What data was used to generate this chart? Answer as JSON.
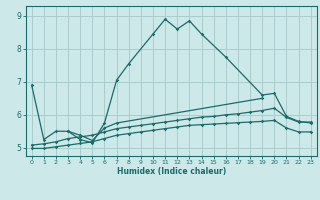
{
  "xlabel": "Humidex (Indice chaleur)",
  "bg_color": "#cce8e8",
  "grid_color": "#aacccc",
  "line_color": "#1a6b6b",
  "xlim": [
    -0.5,
    23.5
  ],
  "ylim": [
    4.75,
    9.3
  ],
  "yticks": [
    5,
    6,
    7,
    8,
    9
  ],
  "xticks": [
    0,
    1,
    2,
    3,
    4,
    5,
    6,
    7,
    8,
    9,
    10,
    11,
    12,
    13,
    14,
    15,
    16,
    17,
    18,
    19,
    20,
    21,
    22,
    23
  ],
  "lines": [
    {
      "x": [
        0,
        1,
        2,
        3,
        4,
        5,
        6,
        7,
        8,
        10,
        11,
        12,
        13,
        14,
        16,
        19,
        20,
        21,
        22,
        23
      ],
      "y": [
        6.9,
        5.25,
        5.5,
        5.5,
        5.25,
        5.15,
        5.75,
        7.05,
        7.55,
        8.45,
        8.9,
        8.6,
        8.85,
        8.45,
        7.75,
        6.6,
        6.65,
        5.95,
        5.8,
        5.75
      ]
    },
    {
      "x": [
        3,
        4,
        5,
        6,
        7,
        19
      ],
      "y": [
        5.5,
        5.38,
        5.22,
        5.6,
        5.75,
        6.5
      ]
    },
    {
      "x": [
        0,
        1,
        2,
        3,
        4,
        5,
        6,
        7,
        8,
        9,
        10,
        11,
        12,
        13,
        14,
        15,
        16,
        17,
        18,
        19,
        20,
        21,
        22,
        23
      ],
      "y": [
        5.08,
        5.12,
        5.18,
        5.28,
        5.33,
        5.38,
        5.48,
        5.58,
        5.63,
        5.68,
        5.73,
        5.78,
        5.83,
        5.88,
        5.93,
        5.95,
        6.0,
        6.03,
        6.08,
        6.13,
        6.2,
        5.92,
        5.78,
        5.78
      ]
    },
    {
      "x": [
        0,
        1,
        2,
        3,
        4,
        5,
        6,
        7,
        8,
        9,
        10,
        11,
        12,
        13,
        14,
        15,
        16,
        17,
        18,
        19,
        20,
        21,
        22,
        23
      ],
      "y": [
        4.98,
        4.98,
        5.03,
        5.08,
        5.13,
        5.18,
        5.28,
        5.38,
        5.43,
        5.48,
        5.53,
        5.58,
        5.63,
        5.68,
        5.7,
        5.72,
        5.74,
        5.76,
        5.78,
        5.8,
        5.83,
        5.6,
        5.48,
        5.48
      ]
    }
  ]
}
